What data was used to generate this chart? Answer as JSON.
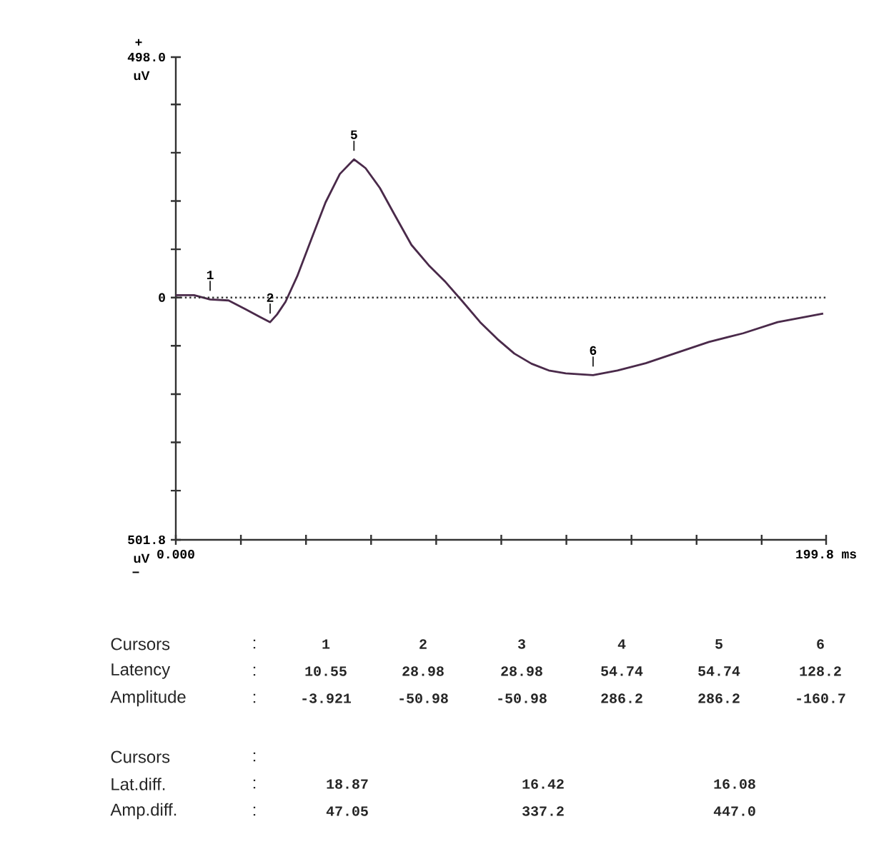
{
  "chart_data": {
    "type": "line",
    "xlim": [
      0,
      199.8
    ],
    "ylim": [
      -501.8,
      498.0
    ],
    "xticks": [
      {
        "value": 0,
        "label": "0.000"
      },
      {
        "value": 20,
        "label": null
      },
      {
        "value": 40,
        "label": null
      },
      {
        "value": 60,
        "label": null
      },
      {
        "value": 80,
        "label": null
      },
      {
        "value": 100,
        "label": null
      },
      {
        "value": 120,
        "label": null
      },
      {
        "value": 140,
        "label": null
      },
      {
        "value": 160,
        "label": null
      },
      {
        "value": 180,
        "label": null
      },
      {
        "value": 199.8,
        "label": "199.8 ms"
      }
    ],
    "yticks": [
      {
        "value": -501.8,
        "label": "501.8"
      },
      {
        "value": -400,
        "label": null
      },
      {
        "value": -300,
        "label": null
      },
      {
        "value": -200,
        "label": null
      },
      {
        "value": -100,
        "label": null
      },
      0,
      {
        "value": 100,
        "label": null
      },
      {
        "value": 200,
        "label": null
      },
      {
        "value": 300,
        "label": null
      },
      {
        "value": 400,
        "label": null
      },
      {
        "value": 498.0,
        "label": "498.0"
      }
    ],
    "x": [
      0,
      5.6,
      10.55,
      16.2,
      21.4,
      25.8,
      28.98,
      31.1,
      33.7,
      37.3,
      41.6,
      46,
      50.4,
      54.74,
      58.3,
      62.7,
      67.1,
      72.4,
      77.7,
      82.9,
      88.2,
      93.5,
      98.8,
      104,
      109.3,
      114.6,
      119.8,
      128.2,
      135.7,
      144.4,
      153.2,
      163.8,
      174.3,
      184.9,
      198.9
    ],
    "series": [
      {
        "color": "#4a2a4a",
        "values": [
          5,
          5,
          -3.921,
          -6,
          -24,
          -40,
          -50.98,
          -35,
          -9,
          44,
          120,
          197,
          256,
          286.2,
          268,
          227,
          173,
          109,
          67,
          32,
          -9,
          -51,
          -86,
          -116,
          -137,
          -151,
          -157,
          -160.7,
          -151,
          -136,
          -116,
          -92,
          -74,
          -51,
          -33
        ]
      }
    ],
    "ref_lines": [
      {
        "axis": "y",
        "value": 0,
        "line_style": "dotted"
      }
    ],
    "annotations": [
      "+",
      "uV",
      "uV",
      "−",
      {
        "text": "1",
        "x": 10.55,
        "y": -3.921
      },
      {
        "text": "2",
        "x": 28.98,
        "y": -50.98
      },
      {
        "text": "5",
        "x": 54.74,
        "y": 286.2
      },
      {
        "text": "6",
        "x": 128.2,
        "y": -160.7
      },
      "Cursors",
      ":",
      "1",
      "2",
      "3",
      "4",
      "5",
      "6",
      "Latency",
      ":",
      "10.55",
      "28.98",
      "28.98",
      "54.74",
      "54.74",
      "128.2",
      "Amplitude",
      ":",
      "-3.921",
      "-50.98",
      "-50.98",
      "286.2",
      "286.2",
      "-160.7",
      "Cursors",
      ":",
      "Lat.diff.",
      ":",
      "18.87",
      "16.42",
      "16.08",
      "Amp.diff.",
      ":",
      "47.05",
      "337.2",
      "447.0"
    ]
  }
}
